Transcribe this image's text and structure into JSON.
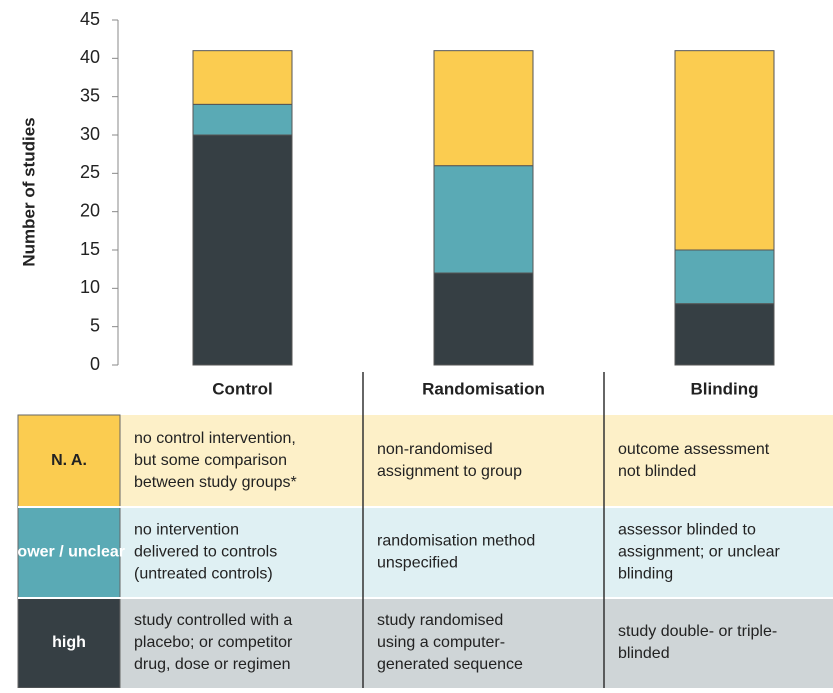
{
  "chart_data": {
    "type": "stacked_bar",
    "y_label": "Number of studies",
    "categories": [
      "Control",
      "Randomisation",
      "Blinding"
    ],
    "ylim": [
      0,
      45
    ],
    "yticks": [
      0,
      5,
      10,
      15,
      20,
      25,
      30,
      35,
      40,
      45
    ],
    "grid": false,
    "series": [
      {
        "name": "high",
        "color": "#363f44",
        "row_color": "#cfd5d7",
        "values": [
          30,
          12,
          8
        ],
        "descriptions": [
          [
            "study controlled with a",
            "placebo; or competitor",
            "drug, dose or regimen"
          ],
          [
            "study randomised",
            "using a computer-",
            "generated sequence"
          ],
          [
            "study double- or triple-",
            "blinded"
          ]
        ]
      },
      {
        "name": "lower / unclear",
        "color": "#5aaab5",
        "row_color": "#dff0f3",
        "values": [
          4,
          14,
          7
        ],
        "descriptions": [
          [
            "no intervention",
            "delivered to controls",
            "(untreated controls)"
          ],
          [
            "randomisation method",
            "unspecified"
          ],
          [
            "assessor blinded to",
            "assignment; or unclear",
            "blinding"
          ]
        ]
      },
      {
        "name": "N. A.",
        "color": "#fbcc50",
        "row_color": "#fdf0c8",
        "values": [
          7,
          15,
          26
        ],
        "descriptions": [
          [
            "no control intervention,",
            "but some comparison",
            "between study groups*"
          ],
          [
            "non-randomised",
            "assignment to group"
          ],
          [
            "outcome assessment",
            "not blinded"
          ]
        ]
      }
    ]
  }
}
